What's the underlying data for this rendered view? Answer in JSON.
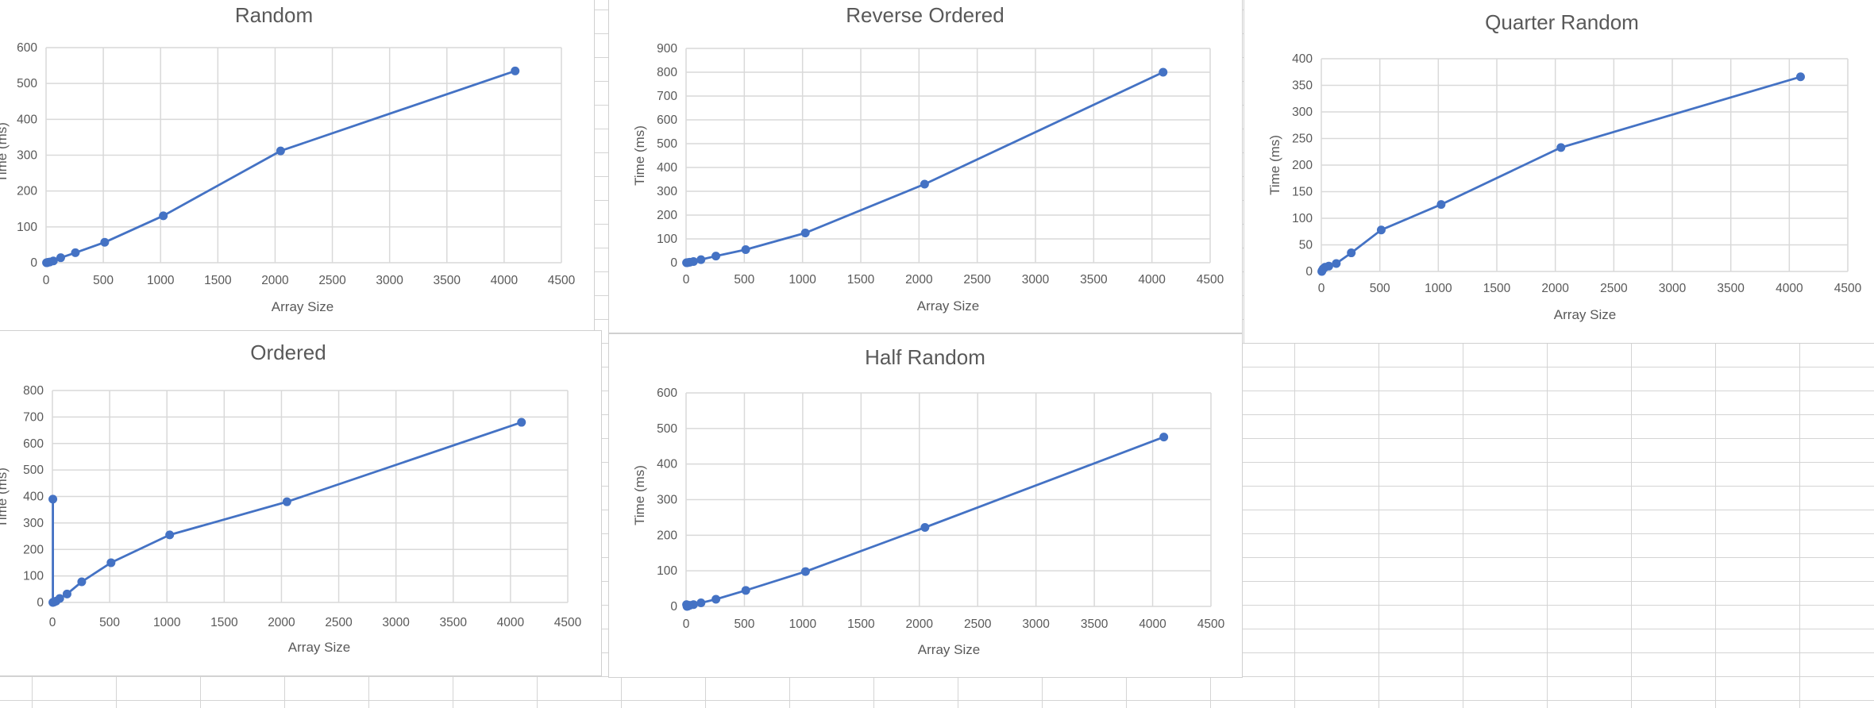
{
  "chart_data": [
    {
      "type": "line",
      "title": "Random",
      "xlabel": "Array Size",
      "ylabel": "Time (ms)",
      "xlim": [
        0,
        4500
      ],
      "ylim": [
        0,
        600
      ],
      "xticks": [
        0,
        500,
        1000,
        1500,
        2000,
        2500,
        3000,
        3500,
        4000,
        4500
      ],
      "yticks": [
        0,
        100,
        200,
        300,
        400,
        500,
        600
      ],
      "grid": true,
      "color": "#4472c4",
      "series": [
        {
          "x": [
            4,
            8,
            16,
            32,
            64,
            128,
            256,
            512,
            1024,
            2048,
            4096
          ],
          "y": [
            0,
            0,
            1,
            2,
            5,
            14,
            28,
            57,
            131,
            312,
            535
          ]
        }
      ]
    },
    {
      "type": "line",
      "title": "Reverse Ordered",
      "xlabel": "Array Size",
      "ylabel": "Time (ms)",
      "xlim": [
        0,
        4500
      ],
      "ylim": [
        0,
        900
      ],
      "xticks": [
        0,
        500,
        1000,
        1500,
        2000,
        2500,
        3000,
        3500,
        4000,
        4500
      ],
      "yticks": [
        0,
        100,
        200,
        300,
        400,
        500,
        600,
        700,
        800,
        900
      ],
      "grid": true,
      "color": "#4472c4",
      "series": [
        {
          "x": [
            4,
            8,
            16,
            32,
            64,
            128,
            256,
            512,
            1024,
            2048,
            4096
          ],
          "y": [
            0,
            0,
            1,
            2,
            5,
            13,
            28,
            55,
            125,
            330,
            800
          ]
        }
      ]
    },
    {
      "type": "line",
      "title": "Quarter Random",
      "xlabel": "Array Size",
      "ylabel": "Time (ms)",
      "xlim": [
        0,
        4500
      ],
      "ylim": [
        0,
        400
      ],
      "xticks": [
        0,
        500,
        1000,
        1500,
        2000,
        2500,
        3000,
        3500,
        4000,
        4500
      ],
      "yticks": [
        0,
        50,
        100,
        150,
        200,
        250,
        300,
        350,
        400
      ],
      "grid": true,
      "color": "#4472c4",
      "series": [
        {
          "x": [
            4,
            8,
            16,
            32,
            64,
            128,
            256,
            512,
            1024,
            2048,
            4096
          ],
          "y": [
            0,
            2,
            5,
            8,
            10,
            15,
            35,
            78,
            126,
            233,
            366
          ]
        }
      ]
    },
    {
      "type": "line",
      "title": "Ordered",
      "xlabel": "Array Size",
      "ylabel": "Time (ms)",
      "xlim": [
        0,
        4500
      ],
      "ylim": [
        0,
        800
      ],
      "xticks": [
        0,
        500,
        1000,
        1500,
        2000,
        2500,
        3000,
        3500,
        4000,
        4500
      ],
      "yticks": [
        0,
        100,
        200,
        300,
        400,
        500,
        600,
        700,
        800
      ],
      "grid": true,
      "color": "#4472c4",
      "series": [
        {
          "x": [
            4,
            4,
            8,
            16,
            32,
            64,
            128,
            256,
            512,
            1024,
            2048,
            4096
          ],
          "y": [
            390,
            0,
            1,
            2,
            5,
            15,
            32,
            78,
            150,
            255,
            380,
            680
          ]
        }
      ]
    },
    {
      "type": "line",
      "title": "Half Random",
      "xlabel": "Array Size",
      "ylabel": "Time (ms)",
      "xlim": [
        0,
        4500
      ],
      "ylim": [
        0,
        600
      ],
      "xticks": [
        0,
        500,
        1000,
        1500,
        2000,
        2500,
        3000,
        3500,
        4000,
        4500
      ],
      "yticks": [
        0,
        100,
        200,
        300,
        400,
        500,
        600
      ],
      "grid": true,
      "color": "#4472c4",
      "series": [
        {
          "x": [
            4,
            8,
            16,
            32,
            64,
            128,
            256,
            512,
            1024,
            2048,
            4096
          ],
          "y": [
            5,
            0,
            1,
            3,
            5,
            10,
            20,
            45,
            98,
            222,
            476
          ]
        }
      ]
    }
  ]
}
